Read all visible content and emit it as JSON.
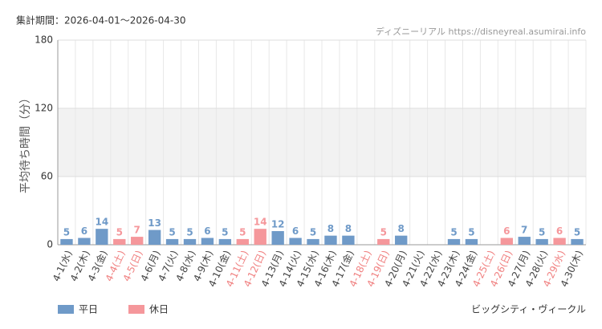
{
  "chart_data": {
    "type": "bar",
    "period": "集計期間：2026-04-01～2026-04-30",
    "source": "ディズニーリアル https://disneyreal.asumirai.info",
    "y_label": "平均待ち時間（分）",
    "attraction": "ビッグシティ・ヴィークル",
    "categories": [
      "4-1(水)",
      "4-2(木)",
      "4-3(金)",
      "4-4(土)",
      "4-5(日)",
      "4-6(月)",
      "4-7(火)",
      "4-8(水)",
      "4-9(木)",
      "4-10(金)",
      "4-11(土)",
      "4-12(日)",
      "4-13(月)",
      "4-14(火)",
      "4-15(水)",
      "4-16(木)",
      "4-17(金)",
      "4-18(土)",
      "4-19(日)",
      "4-20(月)",
      "4-21(火)",
      "4-22(水)",
      "4-23(木)",
      "4-24(金)",
      "4-25(土)",
      "4-26(日)",
      "4-27(月)",
      "4-28(火)",
      "4-29(水)",
      "4-30(木)"
    ],
    "category_colors": [
      "#444",
      "#444",
      "#444",
      "#f08080",
      "#f08080",
      "#444",
      "#444",
      "#444",
      "#444",
      "#444",
      "#f08080",
      "#f08080",
      "#444",
      "#444",
      "#444",
      "#444",
      "#444",
      "#f08080",
      "#f08080",
      "#444",
      "#444",
      "#444",
      "#444",
      "#444",
      "#f08080",
      "#f08080",
      "#444",
      "#444",
      "#f08080",
      "#444"
    ],
    "series": [
      {
        "name": "平日",
        "color": "#6f9ac8",
        "values": [
          5,
          6,
          14,
          null,
          null,
          13,
          5,
          5,
          6,
          5,
          null,
          null,
          12,
          6,
          5,
          8,
          8,
          null,
          null,
          8,
          null,
          null,
          5,
          5,
          null,
          null,
          7,
          5,
          null,
          5
        ]
      },
      {
        "name": "休日",
        "color": "#f5979b",
        "values": [
          null,
          null,
          null,
          5,
          7,
          null,
          null,
          null,
          null,
          null,
          5,
          14,
          null,
          null,
          null,
          null,
          null,
          null,
          5,
          null,
          null,
          null,
          null,
          null,
          null,
          6,
          null,
          null,
          6,
          null
        ]
      }
    ],
    "ylim": [
      0,
      180
    ],
    "yticks": [
      0,
      60,
      120,
      180
    ],
    "shaded_band": [
      60,
      120
    ],
    "grid": true
  }
}
